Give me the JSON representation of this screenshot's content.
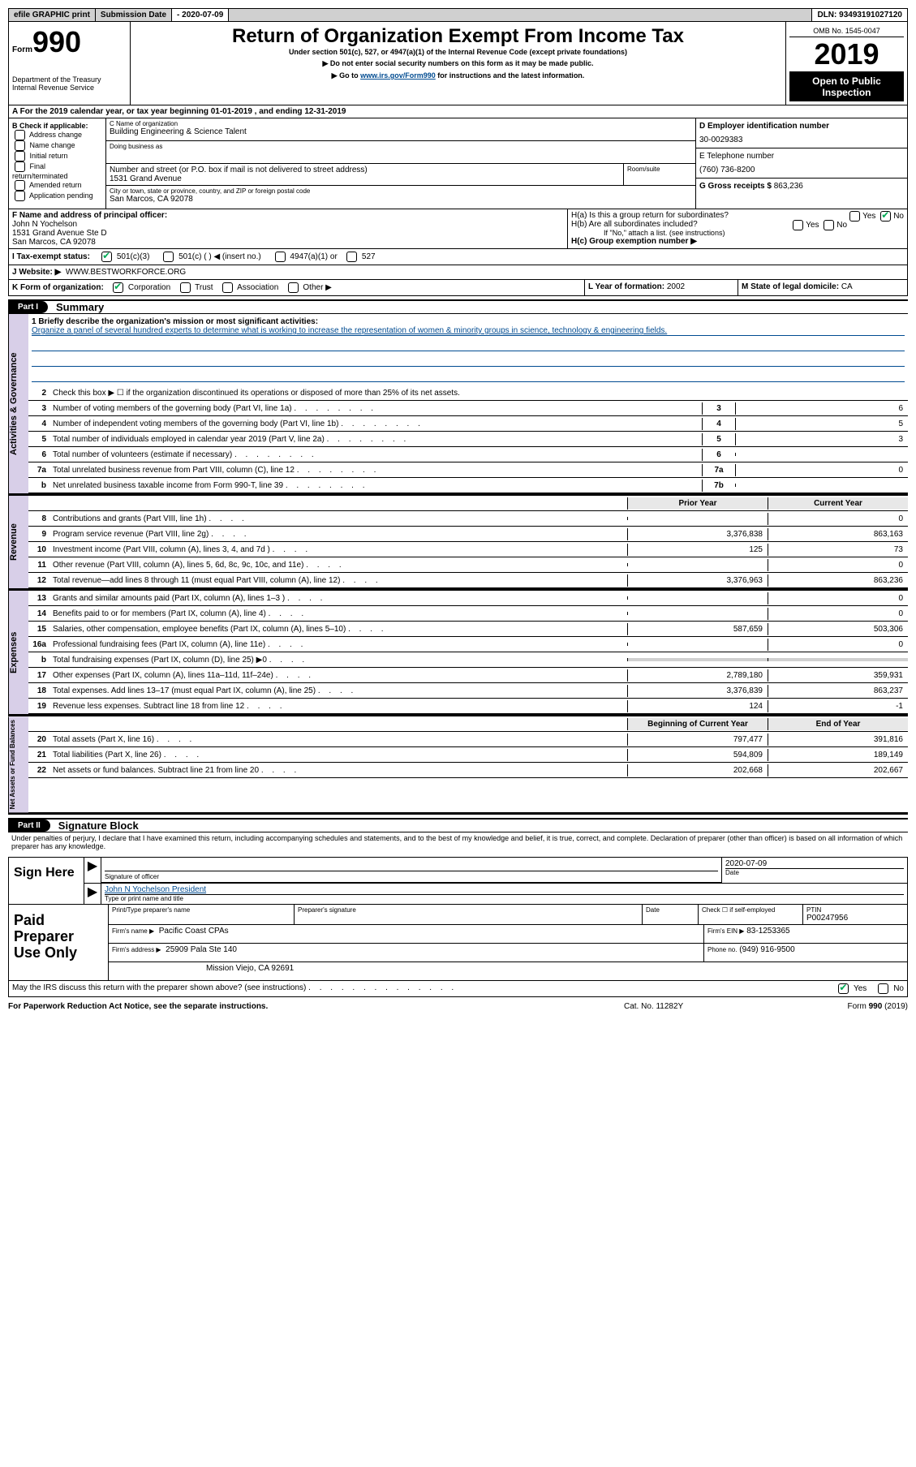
{
  "top": {
    "efile": "efile GRAPHIC print",
    "sub_label": "Submission Date",
    "sub_date": "- 2020-07-09",
    "dln": "DLN: 93493191027120"
  },
  "header": {
    "form_label": "Form",
    "form_num": "990",
    "dept1": "Department of the Treasury",
    "dept2": "Internal Revenue Service",
    "title": "Return of Organization Exempt From Income Tax",
    "sub1": "Under section 501(c), 527, or 4947(a)(1) of the Internal Revenue Code (except private foundations)",
    "sub2": "▶ Do not enter social security numbers on this form as it may be made public.",
    "sub3_pre": "▶ Go to ",
    "sub3_link": "www.irs.gov/Form990",
    "sub3_post": " for instructions and the latest information.",
    "omb": "OMB No. 1545-0047",
    "year": "2019",
    "open": "Open to Public Inspection"
  },
  "sectionA": "A   For the 2019 calendar year, or tax year beginning 01-01-2019    , and ending 12-31-2019",
  "B": {
    "label": "B Check if applicable:",
    "items": [
      "Address change",
      "Name change",
      "Initial return",
      "Final return/terminated",
      "Amended return",
      "Application pending"
    ]
  },
  "C": {
    "name_lab": "C Name of organization",
    "name": "Building Engineering & Science Talent",
    "dba_lab": "Doing business as",
    "street_lab": "Number and street (or P.O. box if mail is not delivered to street address)",
    "street": "1531 Grand Avenue",
    "suite_lab": "Room/suite",
    "city_lab": "City or town, state or province, country, and ZIP or foreign postal code",
    "city": "San Marcos, CA  92078"
  },
  "D": {
    "lab": "D Employer identification number",
    "val": "30-0029383"
  },
  "E": {
    "lab": "E Telephone number",
    "val": "(760) 736-8200"
  },
  "G": {
    "lab": "G Gross receipts $",
    "val": "863,236"
  },
  "F": {
    "lab": "F  Name and address of principal officer:",
    "name": "John N Yochelson",
    "addr1": "1531 Grand Avenue Ste D",
    "addr2": "San Marcos, CA  92078"
  },
  "H": {
    "a": "H(a)  Is this a group return for subordinates?",
    "b": "H(b)  Are all subordinates included?",
    "b_note": "If \"No,\" attach a list. (see instructions)",
    "c": "H(c)  Group exemption number ▶"
  },
  "I": {
    "lab": "I  Tax-exempt status:",
    "opts": [
      "501(c)(3)",
      "501(c) (  ) ◀ (insert no.)",
      "4947(a)(1) or",
      "527"
    ]
  },
  "J": {
    "lab": "J   Website: ▶",
    "val": "WWW.BESTWORKFORCE.ORG"
  },
  "K": {
    "lab": "K Form of organization:",
    "opts": [
      "Corporation",
      "Trust",
      "Association",
      "Other ▶"
    ]
  },
  "L": {
    "lab": "L Year of formation:",
    "val": "2002"
  },
  "M": {
    "lab": "M State of legal domicile:",
    "val": "CA"
  },
  "part1": {
    "hdr": "Part I",
    "title": "Summary",
    "line1_lab": "1  Briefly describe the organization's mission or most significant activities:",
    "line1_text": "Organize a panel of several hundred experts to determine what is working to increase the representation of women & minority groups in science, technology & engineering fields.",
    "line2": "Check this box ▶ ☐  if the organization discontinued its operations or disposed of more than 25% of its net assets.",
    "rows_small": [
      {
        "n": "3",
        "d": "Number of voting members of the governing body (Part VI, line 1a)",
        "box": "3",
        "v": "6"
      },
      {
        "n": "4",
        "d": "Number of independent voting members of the governing body (Part VI, line 1b)",
        "box": "4",
        "v": "5"
      },
      {
        "n": "5",
        "d": "Total number of individuals employed in calendar year 2019 (Part V, line 2a)",
        "box": "5",
        "v": "3"
      },
      {
        "n": "6",
        "d": "Total number of volunteers (estimate if necessary)",
        "box": "6",
        "v": ""
      },
      {
        "n": "7a",
        "d": "Total unrelated business revenue from Part VIII, column (C), line 12",
        "box": "7a",
        "v": "0"
      },
      {
        "n": "b",
        "d": "Net unrelated business taxable income from Form 990-T, line 39",
        "box": "7b",
        "v": ""
      }
    ],
    "col_hdr": {
      "prior": "Prior Year",
      "curr": "Current Year"
    },
    "revenue": [
      {
        "n": "8",
        "d": "Contributions and grants (Part VIII, line 1h)",
        "p": "",
        "c": "0"
      },
      {
        "n": "9",
        "d": "Program service revenue (Part VIII, line 2g)",
        "p": "3,376,838",
        "c": "863,163"
      },
      {
        "n": "10",
        "d": "Investment income (Part VIII, column (A), lines 3, 4, and 7d )",
        "p": "125",
        "c": "73"
      },
      {
        "n": "11",
        "d": "Other revenue (Part VIII, column (A), lines 5, 6d, 8c, 9c, 10c, and 11e)",
        "p": "",
        "c": "0"
      },
      {
        "n": "12",
        "d": "Total revenue—add lines 8 through 11 (must equal Part VIII, column (A), line 12)",
        "p": "3,376,963",
        "c": "863,236"
      }
    ],
    "expenses": [
      {
        "n": "13",
        "d": "Grants and similar amounts paid (Part IX, column (A), lines 1–3 )",
        "p": "",
        "c": "0"
      },
      {
        "n": "14",
        "d": "Benefits paid to or for members (Part IX, column (A), line 4)",
        "p": "",
        "c": "0"
      },
      {
        "n": "15",
        "d": "Salaries, other compensation, employee benefits (Part IX, column (A), lines 5–10)",
        "p": "587,659",
        "c": "503,306"
      },
      {
        "n": "16a",
        "d": "Professional fundraising fees (Part IX, column (A), line 11e)",
        "p": "",
        "c": "0"
      },
      {
        "n": "b",
        "d": "Total fundraising expenses (Part IX, column (D), line 25) ▶0",
        "p": "shade",
        "c": "shade"
      },
      {
        "n": "17",
        "d": "Other expenses (Part IX, column (A), lines 11a–11d, 11f–24e)",
        "p": "2,789,180",
        "c": "359,931"
      },
      {
        "n": "18",
        "d": "Total expenses. Add lines 13–17 (must equal Part IX, column (A), line 25)",
        "p": "3,376,839",
        "c": "863,237"
      },
      {
        "n": "19",
        "d": "Revenue less expenses. Subtract line 18 from line 12",
        "p": "124",
        "c": "-1"
      }
    ],
    "net_hdr": {
      "beg": "Beginning of Current Year",
      "end": "End of Year"
    },
    "net": [
      {
        "n": "20",
        "d": "Total assets (Part X, line 16)",
        "p": "797,477",
        "c": "391,816"
      },
      {
        "n": "21",
        "d": "Total liabilities (Part X, line 26)",
        "p": "594,809",
        "c": "189,149"
      },
      {
        "n": "22",
        "d": "Net assets or fund balances. Subtract line 21 from line 20",
        "p": "202,668",
        "c": "202,667"
      }
    ],
    "vtabs": {
      "gov": "Activities & Governance",
      "rev": "Revenue",
      "exp": "Expenses",
      "net": "Net Assets or Fund Balances"
    }
  },
  "part2": {
    "hdr": "Part II",
    "title": "Signature Block",
    "decl": "Under penalties of perjury, I declare that I have examined this return, including accompanying schedules and statements, and to the best of my knowledge and belief, it is true, correct, and complete. Declaration of preparer (other than officer) is based on all information of which preparer has any knowledge.",
    "sign_here": "Sign Here",
    "sig_officer_lab": "Signature of officer",
    "date_lab": "Date",
    "date_val": "2020-07-09",
    "officer_name": "John N Yochelson  President",
    "officer_sub": "Type or print name and title",
    "paid_lab": "Paid Preparer Use Only",
    "prep_name_lab": "Print/Type preparer's name",
    "prep_sig_lab": "Preparer's signature",
    "prep_date_lab": "Date",
    "check_lab": "Check ☐ if self-employed",
    "ptin_lab": "PTIN",
    "ptin_val": "P00247956",
    "firm_name_lab": "Firm's name     ▶",
    "firm_name": "Pacific Coast CPAs",
    "firm_ein_lab": "Firm's EIN ▶",
    "firm_ein": "83-1253365",
    "firm_addr_lab": "Firm's address ▶",
    "firm_addr1": "25909 Pala Ste 140",
    "firm_addr2": "Mission Viejo, CA  92691",
    "phone_lab": "Phone no.",
    "phone": "(949) 916-9500",
    "discuss": "May the IRS discuss this return with the preparer shown above? (see instructions)"
  },
  "footer": {
    "left": "For Paperwork Reduction Act Notice, see the separate instructions.",
    "mid": "Cat. No. 11282Y",
    "right": "Form 990 (2019)"
  },
  "yesno": {
    "yes": "Yes",
    "no": "No"
  }
}
